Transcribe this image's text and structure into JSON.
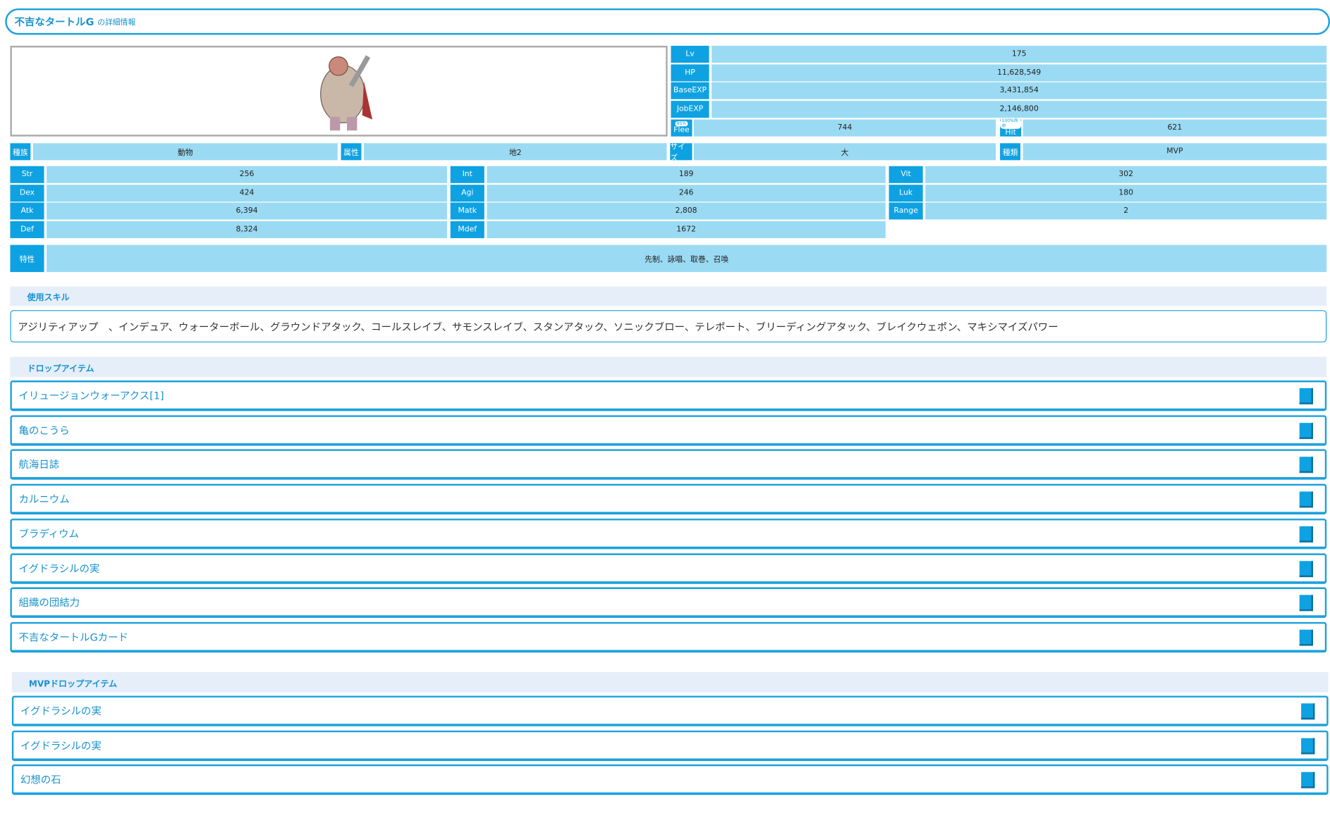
{
  "header": {
    "title": "不吉なタートルG",
    "suffix": "の詳細情報"
  },
  "stats_top": [
    {
      "label": "Lv",
      "value": "175"
    },
    {
      "label": "HP",
      "value": "11,628,549"
    },
    {
      "label": "BaseEXP",
      "value": "3,431,854"
    },
    {
      "label": "JobEXP",
      "value": "2,146,800"
    }
  ],
  "flee": {
    "label": "Flee",
    "badge": "95%",
    "value": "744"
  },
  "hit": {
    "label": "Hit",
    "badge": "100%命中",
    "value": "621"
  },
  "info": [
    {
      "label": "種族",
      "value": "動物"
    },
    {
      "label": "属性",
      "value": "地2"
    },
    {
      "label": "サイズ",
      "value": "大"
    },
    {
      "label": "種類",
      "value": "MVP"
    }
  ],
  "stats": [
    [
      {
        "label": "Str",
        "value": "256"
      },
      {
        "label": "Int",
        "value": "189"
      },
      {
        "label": "Vit",
        "value": "302"
      }
    ],
    [
      {
        "label": "Dex",
        "value": "424"
      },
      {
        "label": "Agi",
        "value": "246"
      },
      {
        "label": "Luk",
        "value": "180"
      }
    ],
    [
      {
        "label": "Atk",
        "value": "6,394"
      },
      {
        "label": "Matk",
        "value": "2,808"
      },
      {
        "label": "Range",
        "value": "2"
      }
    ],
    [
      {
        "label": "Def",
        "value": "8,324"
      },
      {
        "label": "Mdef",
        "value": "1672"
      }
    ]
  ],
  "trait": {
    "label": "特性",
    "value": "先制、詠唱、取巻、召喚"
  },
  "skills": {
    "title": "使用スキル",
    "text": "アジリティアップ　、インデュア、ウォーターボール、グラウンドアタック、コールスレイブ、サモンスレイブ、スタンアタック、ソニックブロー、テレポート、ブリーディングアタック、ブレイクウェポン、マキシマイズパワー"
  },
  "drops": {
    "title": "ドロップアイテム",
    "items": [
      "イリュージョンウォーアクス[1]",
      "亀のこうら",
      "航海日誌",
      "カルニウム",
      "ブラディウム",
      "イグドラシルの実",
      "組織の団結力",
      "不吉なタートルGカード"
    ]
  },
  "mvp_drops": {
    "title": "MVPドロップアイテム",
    "items": [
      "イグドラシルの実",
      "イグドラシルの実",
      "幻想の石"
    ]
  }
}
